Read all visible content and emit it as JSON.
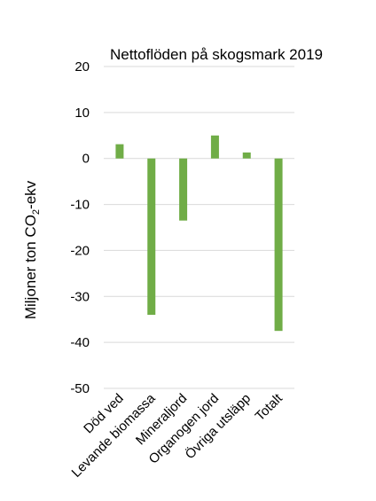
{
  "chart_data": {
    "type": "bar",
    "title": "Nettoflöden på skogsmark 2019",
    "ylabel": {
      "pre": "Miljoner ton CO",
      "sub": "2",
      "post": "-ekv"
    },
    "categories": [
      "Död ved",
      "Levande biomassa",
      "Mineraljord",
      "Organogen jord",
      "Övriga utsläpp",
      "Totalt"
    ],
    "values": [
      3.1,
      -34,
      -13.5,
      5.0,
      1.3,
      -37.5
    ],
    "ylim": [
      -50,
      20
    ],
    "yticks": [
      20,
      10,
      0,
      -10,
      -20,
      -30,
      -40,
      -50
    ],
    "grid": true,
    "bar_color": "#70ad47"
  }
}
